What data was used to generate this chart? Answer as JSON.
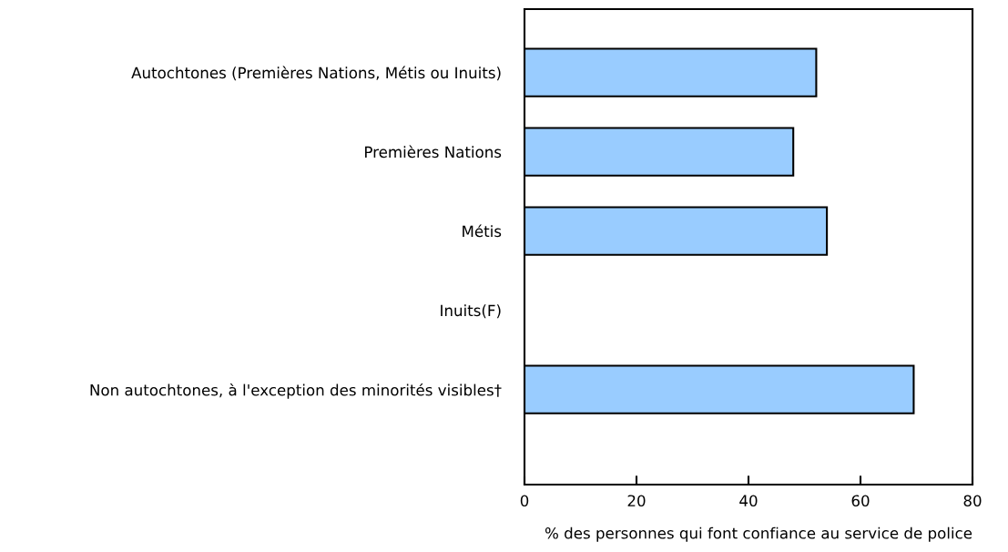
{
  "chart_data": {
    "type": "bar",
    "orientation": "horizontal",
    "categories": [
      "Autochtones (Premières Nations, Métis ou Inuits)",
      "Premières Nations",
      "Métis",
      "Inuits(F)",
      "Non autochtones, à l'exception des minorités visibles†"
    ],
    "values": [
      52.1,
      48.0,
      54.0,
      null,
      69.5
    ],
    "color": "#99ccff",
    "xlabel": "% des personnes qui font confiance au service de police",
    "xlim": [
      0,
      80
    ],
    "xticks": [
      0,
      20,
      40,
      60,
      80
    ],
    "grid": false
  }
}
